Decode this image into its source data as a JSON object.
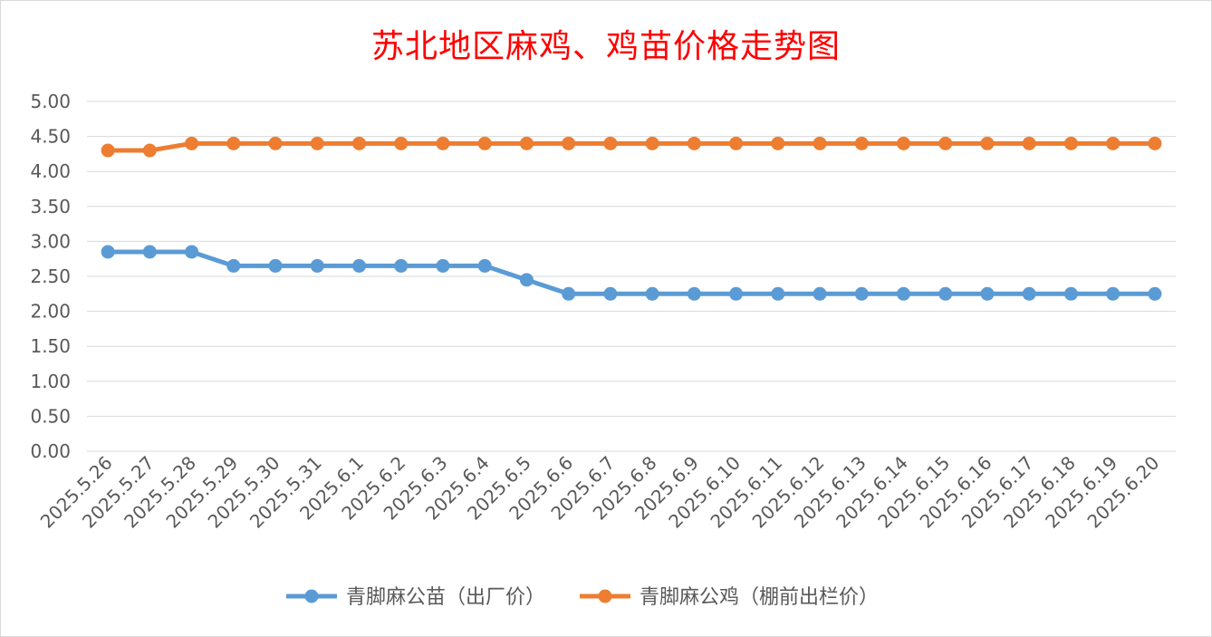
{
  "chart_data": {
    "type": "line",
    "title": "苏北地区麻鸡、鸡苗价格走势图",
    "xlabel": "",
    "ylabel": "",
    "ylim": [
      0,
      5
    ],
    "yticks": [
      "0.00",
      "0.50",
      "1.00",
      "1.50",
      "2.00",
      "2.50",
      "3.00",
      "3.50",
      "4.00",
      "4.50",
      "5.00"
    ],
    "grid": true,
    "legend_position": "bottom",
    "categories": [
      "2025.5.26",
      "2025.5.27",
      "2025.5.28",
      "2025.5.29",
      "2025.5.30",
      "2025.5.31",
      "2025.6.1",
      "2025.6.2",
      "2025.6.3",
      "2025.6.4",
      "2025.6.5",
      "2025.6.6",
      "2025.6.7",
      "2025.6.8",
      "2025.6.9",
      "2025.6.10",
      "2025.6.11",
      "2025.6.12",
      "2025.6.13",
      "2025.6.14",
      "2025.6.15",
      "2025.6.16",
      "2025.6.17",
      "2025.6.18",
      "2025.6.19",
      "2025.6.20"
    ],
    "series": [
      {
        "name": "青脚麻公苗（出厂价）",
        "color": "#5b9bd5",
        "values": [
          2.85,
          2.85,
          2.85,
          2.65,
          2.65,
          2.65,
          2.65,
          2.65,
          2.65,
          2.65,
          2.45,
          2.25,
          2.25,
          2.25,
          2.25,
          2.25,
          2.25,
          2.25,
          2.25,
          2.25,
          2.25,
          2.25,
          2.25,
          2.25,
          2.25,
          2.25
        ]
      },
      {
        "name": "青脚麻公鸡（棚前出栏价）",
        "color": "#ed7d31",
        "values": [
          4.3,
          4.3,
          4.4,
          4.4,
          4.4,
          4.4,
          4.4,
          4.4,
          4.4,
          4.4,
          4.4,
          4.4,
          4.4,
          4.4,
          4.4,
          4.4,
          4.4,
          4.4,
          4.4,
          4.4,
          4.4,
          4.4,
          4.4,
          4.4,
          4.4,
          4.4
        ]
      }
    ]
  }
}
